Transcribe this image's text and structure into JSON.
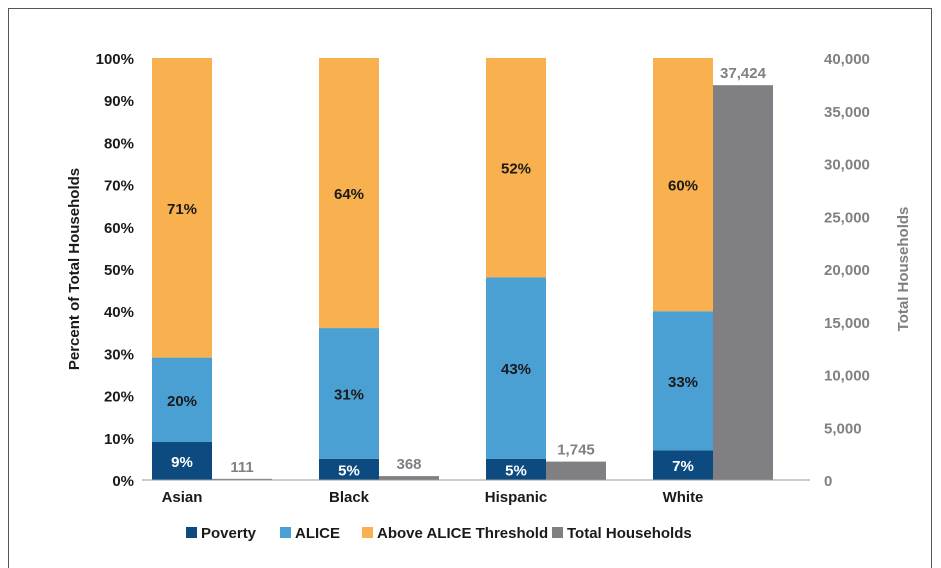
{
  "chart_data": {
    "type": "bar",
    "categories": [
      "Asian",
      "Black",
      "Hispanic",
      "White"
    ],
    "series": [
      {
        "name": "Poverty",
        "axis": "left",
        "color": "#0d4a80",
        "values": [
          9,
          5,
          5,
          7
        ],
        "labels": [
          "9%",
          "5%",
          "5%",
          "7%"
        ]
      },
      {
        "name": "ALICE",
        "axis": "left",
        "color": "#4a9fd3",
        "values": [
          20,
          31,
          43,
          33
        ],
        "labels": [
          "20%",
          "31%",
          "43%",
          "33%"
        ]
      },
      {
        "name": "Above ALICE Threshold",
        "axis": "left",
        "color": "#f9b04f",
        "values": [
          71,
          64,
          52,
          60
        ],
        "labels": [
          "71%",
          "64%",
          "52%",
          "60%"
        ]
      },
      {
        "name": "Total Households",
        "axis": "right",
        "color": "#808084",
        "values": [
          111,
          368,
          1745,
          37424
        ],
        "labels": [
          "111",
          "368",
          "1,745",
          "37,424"
        ]
      }
    ],
    "ylabel": "Percent of Total Households",
    "y2label": "Total Households",
    "ylim": [
      0,
      100
    ],
    "y2lim": [
      0,
      40000
    ],
    "yticks": [
      "0%",
      "10%",
      "20%",
      "30%",
      "40%",
      "50%",
      "60%",
      "70%",
      "80%",
      "90%",
      "100%"
    ],
    "y2ticks": [
      "0",
      "5,000",
      "10,000",
      "15,000",
      "20,000",
      "25,000",
      "30,000",
      "35,000",
      "40,000"
    ],
    "legend_position": "bottom",
    "stacked_primary": true
  }
}
